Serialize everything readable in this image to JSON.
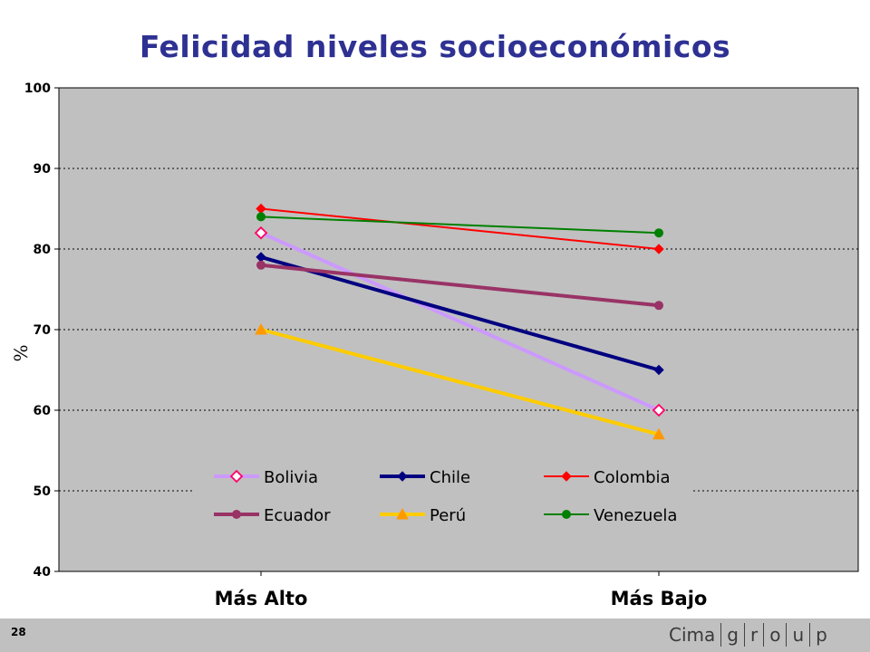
{
  "slide": {
    "title": "Felicidad niveles socioeconómicos",
    "page_number": "28"
  },
  "logo": {
    "brand": "Cima",
    "suffix_letters": [
      "g",
      "r",
      "o",
      "u",
      "p"
    ]
  },
  "chart_data": {
    "type": "line",
    "title": "Felicidad niveles socioeconómicos",
    "ylabel": "%",
    "xlabel": "",
    "categories": [
      "Más Alto",
      "Más Bajo"
    ],
    "ylim": [
      40,
      100
    ],
    "yticks": [
      40,
      50,
      60,
      70,
      80,
      90,
      100
    ],
    "grid": true,
    "legend_position": "bottom-center",
    "series": [
      {
        "name": "Bolivia",
        "values": [
          82,
          60
        ],
        "color": "#cc99ff",
        "marker": "diamond-open",
        "marker_stroke": "#ff0066"
      },
      {
        "name": "Chile",
        "values": [
          79,
          65
        ],
        "color": "#000080",
        "marker": "diamond",
        "marker_stroke": "#000080"
      },
      {
        "name": "Colombia",
        "values": [
          85,
          80
        ],
        "color": "#ff0000",
        "marker": "diamond",
        "marker_stroke": "#ff0000"
      },
      {
        "name": "Ecuador",
        "values": [
          78,
          73
        ],
        "color": "#993366",
        "marker": "circle",
        "marker_stroke": "#993366"
      },
      {
        "name": "Perú",
        "values": [
          70,
          57
        ],
        "color": "#ffcc00",
        "marker": "triangle",
        "marker_stroke": "#ff9900"
      },
      {
        "name": "Venezuela",
        "values": [
          84,
          82
        ],
        "color": "#008000",
        "marker": "circle",
        "marker_stroke": "#008000"
      }
    ]
  }
}
